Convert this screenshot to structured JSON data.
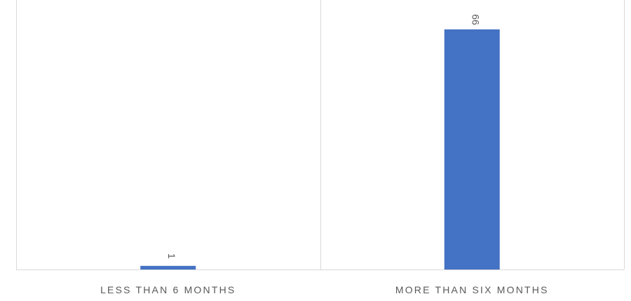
{
  "chart_data": {
    "type": "bar",
    "categories": [
      "LESS THAN 6 MONTHS",
      "MORE THAN SIX MONTHS"
    ],
    "values": [
      1,
      66
    ],
    "data_labels": [
      "1",
      "66"
    ],
    "title": "",
    "xlabel": "",
    "ylabel": "",
    "ylim": [
      0,
      70
    ],
    "grid": false,
    "legend": "none",
    "bar_color": "#4472C4",
    "axis_color": "#D9D9D9",
    "text_color": "#595959"
  }
}
